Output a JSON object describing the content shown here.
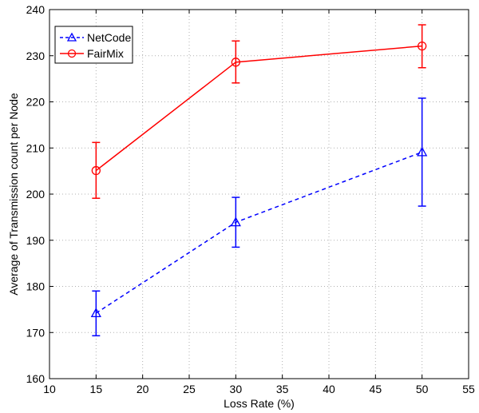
{
  "chart_data": {
    "type": "line",
    "title": "",
    "xlabel": "Loss Rate (%)",
    "ylabel": "Average of Transmission count per Node",
    "xlim": [
      10,
      55
    ],
    "ylim": [
      160,
      240
    ],
    "xticks": [
      10,
      15,
      20,
      25,
      30,
      35,
      40,
      45,
      50,
      55
    ],
    "yticks": [
      160,
      170,
      180,
      190,
      200,
      210,
      220,
      230,
      240
    ],
    "grid": true,
    "legend_position": "top-left",
    "x": [
      15,
      30,
      50
    ],
    "series": [
      {
        "name": "NetCode",
        "color": "#0000ff",
        "marker": "triangle",
        "line_style": "dashed",
        "values": [
          174.2,
          193.9,
          209.1
        ],
        "error_low": [
          169.3,
          188.5,
          197.4
        ],
        "error_high": [
          179.0,
          199.3,
          220.8
        ]
      },
      {
        "name": "FairMix",
        "color": "#ff0000",
        "marker": "circle",
        "line_style": "solid",
        "values": [
          205.1,
          228.6,
          232.1
        ],
        "error_low": [
          199.1,
          224.1,
          227.4
        ],
        "error_high": [
          211.2,
          233.2,
          236.7
        ]
      }
    ]
  }
}
